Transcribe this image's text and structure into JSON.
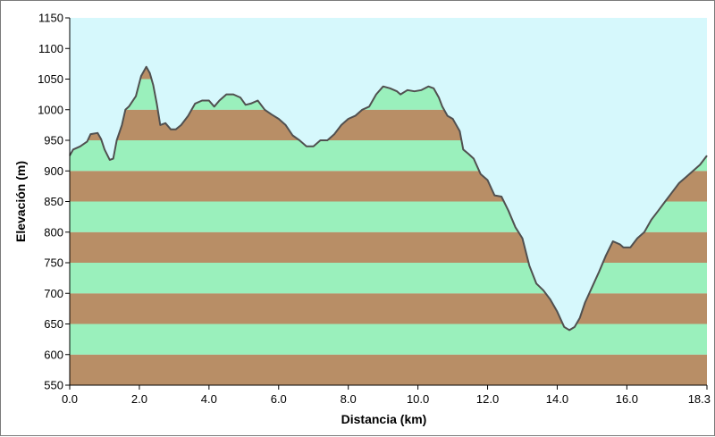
{
  "chart_data": {
    "type": "area",
    "title": "",
    "xlabel": "Distancia  (km)",
    "ylabel": "Elevación (m)",
    "xlim": [
      0,
      18.3
    ],
    "ylim": [
      550,
      1150
    ],
    "x_ticks": [
      "0.0",
      "2.0",
      "4.0",
      "6.0",
      "8.0",
      "10.0",
      "12.0",
      "14.0",
      "16.0",
      "18.3"
    ],
    "y_ticks": [
      "550",
      "600",
      "650",
      "700",
      "750",
      "800",
      "850",
      "900",
      "950",
      "1000",
      "1050",
      "1100",
      "1150"
    ],
    "band_interval": 50,
    "grid": false,
    "colors": {
      "sky": "#d6f8fc",
      "band_dark": "#b88e66",
      "band_light": "#9af0bc",
      "line": "#505050"
    },
    "series": [
      {
        "x": [
          0.0,
          0.1,
          0.3,
          0.5,
          0.6,
          0.8,
          0.9,
          1.0,
          1.15,
          1.25,
          1.35,
          1.5,
          1.6,
          1.7,
          1.9,
          2.05,
          2.2,
          2.3,
          2.4,
          2.5,
          2.6,
          2.75,
          2.9,
          3.05,
          3.2,
          3.4,
          3.6,
          3.8,
          4.0,
          4.15,
          4.3,
          4.5,
          4.7,
          4.9,
          5.05,
          5.2,
          5.4,
          5.6,
          5.8,
          6.0,
          6.2,
          6.4,
          6.6,
          6.8,
          7.0,
          7.2,
          7.4,
          7.6,
          7.8,
          8.0,
          8.2,
          8.4,
          8.6,
          8.8,
          9.0,
          9.2,
          9.4,
          9.5,
          9.7,
          9.9,
          10.1,
          10.3,
          10.45,
          10.6,
          10.7,
          10.85,
          11.0,
          11.2,
          11.3,
          11.45,
          11.6,
          11.8,
          12.0,
          12.2,
          12.4,
          12.6,
          12.8,
          13.0,
          13.2,
          13.4,
          13.6,
          13.8,
          14.0,
          14.2,
          14.35,
          14.5,
          14.65,
          14.8,
          15.0,
          15.2,
          15.4,
          15.6,
          15.8,
          15.9,
          16.1,
          16.3,
          16.5,
          16.7,
          16.9,
          17.1,
          17.3,
          17.5,
          17.7,
          17.9,
          18.1,
          18.3
        ],
        "y": [
          925,
          935,
          940,
          948,
          960,
          962,
          952,
          935,
          918,
          920,
          950,
          975,
          1000,
          1005,
          1022,
          1055,
          1070,
          1060,
          1040,
          1010,
          975,
          978,
          968,
          968,
          975,
          990,
          1010,
          1015,
          1015,
          1005,
          1015,
          1025,
          1025,
          1020,
          1008,
          1010,
          1015,
          1000,
          992,
          985,
          975,
          958,
          950,
          940,
          940,
          950,
          950,
          960,
          975,
          985,
          990,
          1000,
          1005,
          1025,
          1038,
          1035,
          1030,
          1025,
          1032,
          1030,
          1032,
          1038,
          1035,
          1020,
          1005,
          990,
          985,
          965,
          935,
          928,
          920,
          895,
          885,
          860,
          858,
          835,
          808,
          790,
          745,
          716,
          705,
          690,
          670,
          645,
          640,
          645,
          660,
          685,
          710,
          735,
          762,
          785,
          780,
          775,
          775,
          790,
          800,
          820,
          835,
          850,
          865,
          880,
          890,
          900,
          910,
          925
        ]
      }
    ]
  }
}
